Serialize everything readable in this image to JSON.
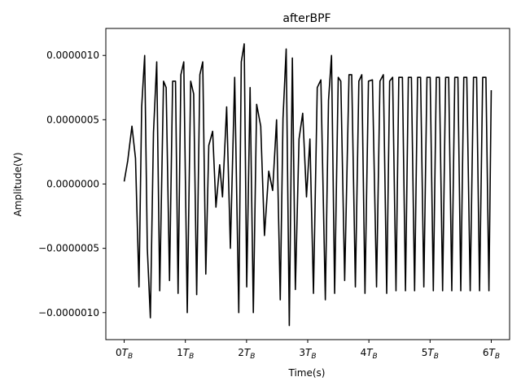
{
  "chart_data": {
    "type": "line",
    "title": "afterBPF",
    "xlabel": "Time(s)",
    "ylabel": "Amplitude(V)",
    "xlim": [
      -0.3,
      6.3
    ],
    "ylim": [
      -1.21e-06,
      1.21e-06
    ],
    "grid": false,
    "legend": "none",
    "line_color": "#000000",
    "x_ticks": [
      {
        "value": 0,
        "label": "0",
        "sub": "B"
      },
      {
        "value": 1,
        "label": "1",
        "sub": "B"
      },
      {
        "value": 2,
        "label": "2",
        "sub": "B"
      },
      {
        "value": 3,
        "label": "3",
        "sub": "B"
      },
      {
        "value": 4,
        "label": "4",
        "sub": "B"
      },
      {
        "value": 5,
        "label": "5",
        "sub": "B"
      },
      {
        "value": 6,
        "label": "6",
        "sub": "B"
      }
    ],
    "x_tick_base": "T",
    "y_ticks": [
      {
        "value": 1e-06,
        "label": "0.0000010"
      },
      {
        "value": 5e-07,
        "label": "0.0000005"
      },
      {
        "value": 0.0,
        "label": "0.0000000"
      },
      {
        "value": -5e-07,
        "label": "−0.0000005"
      },
      {
        "value": -1e-06,
        "label": "−0.0000010"
      }
    ],
    "series": [
      {
        "x": [
          0.0,
          0.058,
          0.127,
          0.185,
          0.242,
          0.286,
          0.335,
          0.378,
          0.428,
          0.479,
          0.532,
          0.581,
          0.643,
          0.686,
          0.741,
          0.792,
          0.839,
          0.881,
          0.927,
          0.974,
          1.031,
          1.087,
          1.136,
          1.185,
          1.237,
          1.284,
          1.334,
          1.383,
          1.446,
          1.5,
          1.561,
          1.607,
          1.675,
          1.736,
          1.806,
          1.873,
          1.914,
          1.962,
          2.003,
          2.058,
          2.111,
          2.165,
          2.232,
          2.293,
          2.363,
          2.427,
          2.491,
          2.551,
          2.596,
          2.648,
          2.699,
          2.749,
          2.798,
          2.858,
          2.918,
          2.98,
          3.036,
          3.094,
          3.156,
          3.215,
          3.288,
          3.34,
          3.389,
          3.44,
          3.499,
          3.541,
          3.604,
          3.675,
          3.719,
          3.779,
          3.836,
          3.884,
          3.936,
          3.993,
          4.058,
          4.125,
          4.181,
          4.236,
          4.291,
          4.339,
          4.388,
          4.443,
          4.489,
          4.548,
          4.598,
          4.645,
          4.695,
          4.747,
          4.796,
          4.845,
          4.898,
          4.949,
          5.002,
          5.053,
          5.102,
          5.152,
          5.205,
          5.254,
          5.304,
          5.355,
          5.404,
          5.455,
          5.502,
          5.551,
          5.6,
          5.656,
          5.71,
          5.761,
          5.809,
          5.86,
          5.913,
          5.962,
          6.0
        ],
        "y": [
          2e-08,
          1.8e-07,
          4.5e-07,
          2e-07,
          -8e-07,
          6e-07,
          1e-06,
          -5e-07,
          -1.04e-06,
          4e-07,
          9.5e-07,
          -8.3e-07,
          8e-07,
          7.5e-07,
          -7.5e-07,
          8e-07,
          8e-07,
          -8.5e-07,
          8.5e-07,
          9.5e-07,
          -1e-06,
          8e-07,
          7e-07,
          -8.6e-07,
          8.5e-07,
          9.5e-07,
          -7e-07,
          3e-07,
          4.1e-07,
          -1.8e-07,
          1.5e-07,
          -1e-07,
          6e-07,
          -5e-07,
          8.3e-07,
          -1e-06,
          9.5e-07,
          1.09e-06,
          -8e-07,
          7.5e-07,
          -1e-06,
          6.2e-07,
          4.5e-07,
          -4e-07,
          1e-07,
          -5e-08,
          5e-07,
          -9e-07,
          5.1e-07,
          1.05e-06,
          -1.1e-06,
          9.8e-07,
          -8.2e-07,
          3.5e-07,
          5.5e-07,
          -1e-07,
          3.5e-07,
          -8.5e-07,
          7.5e-07,
          8.1e-07,
          -9e-07,
          6.5e-07,
          1e-06,
          -8.5e-07,
          8.3e-07,
          8e-07,
          -7.5e-07,
          8.5e-07,
          8.5e-07,
          -8e-07,
          8e-07,
          8.5e-07,
          -8.5e-07,
          8e-07,
          8.1e-07,
          -8e-07,
          8e-07,
          8.5e-07,
          -8.5e-07,
          8e-07,
          8.3e-07,
          -8.3e-07,
          8.3e-07,
          8.3e-07,
          -8.3e-07,
          8.3e-07,
          8.3e-07,
          -8.3e-07,
          8.3e-07,
          8.3e-07,
          -8e-07,
          8.3e-07,
          8.3e-07,
          -8.3e-07,
          8.3e-07,
          8.3e-07,
          -8.3e-07,
          8.3e-07,
          8.3e-07,
          -8.3e-07,
          8.3e-07,
          8.3e-07,
          -8.3e-07,
          8.3e-07,
          8.3e-07,
          -8.3e-07,
          8.3e-07,
          8.3e-07,
          -8.3e-07,
          8.3e-07,
          8.3e-07,
          -8.3e-07,
          7.3e-07
        ]
      }
    ]
  }
}
